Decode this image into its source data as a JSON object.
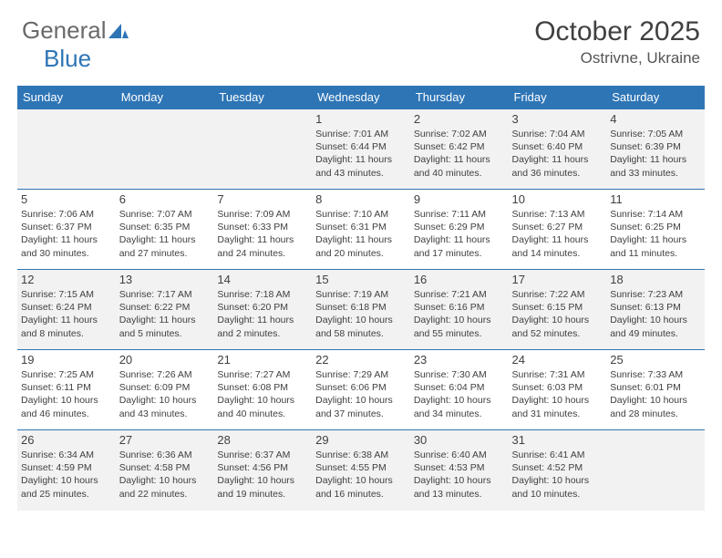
{
  "logo": {
    "text1": "General",
    "text2": "Blue"
  },
  "header": {
    "month_title": "October 2025",
    "location": "Ostrivne, Ukraine"
  },
  "colors": {
    "header_bg": "#2e75b6",
    "shaded_bg": "#f2f2f2",
    "text": "#404040",
    "logo_gray": "#6a6a6a",
    "page_bg": "#ffffff"
  },
  "day_headers": [
    "Sunday",
    "Monday",
    "Tuesday",
    "Wednesday",
    "Thursday",
    "Friday",
    "Saturday"
  ],
  "weeks": [
    {
      "cells": [
        {
          "day": "",
          "sunrise": "",
          "sunset": "",
          "daylight": ""
        },
        {
          "day": "",
          "sunrise": "",
          "sunset": "",
          "daylight": ""
        },
        {
          "day": "",
          "sunrise": "",
          "sunset": "",
          "daylight": ""
        },
        {
          "day": "1",
          "sunrise": "Sunrise: 7:01 AM",
          "sunset": "Sunset: 6:44 PM",
          "daylight": "Daylight: 11 hours and 43 minutes."
        },
        {
          "day": "2",
          "sunrise": "Sunrise: 7:02 AM",
          "sunset": "Sunset: 6:42 PM",
          "daylight": "Daylight: 11 hours and 40 minutes."
        },
        {
          "day": "3",
          "sunrise": "Sunrise: 7:04 AM",
          "sunset": "Sunset: 6:40 PM",
          "daylight": "Daylight: 11 hours and 36 minutes."
        },
        {
          "day": "4",
          "sunrise": "Sunrise: 7:05 AM",
          "sunset": "Sunset: 6:39 PM",
          "daylight": "Daylight: 11 hours and 33 minutes."
        }
      ]
    },
    {
      "cells": [
        {
          "day": "5",
          "sunrise": "Sunrise: 7:06 AM",
          "sunset": "Sunset: 6:37 PM",
          "daylight": "Daylight: 11 hours and 30 minutes."
        },
        {
          "day": "6",
          "sunrise": "Sunrise: 7:07 AM",
          "sunset": "Sunset: 6:35 PM",
          "daylight": "Daylight: 11 hours and 27 minutes."
        },
        {
          "day": "7",
          "sunrise": "Sunrise: 7:09 AM",
          "sunset": "Sunset: 6:33 PM",
          "daylight": "Daylight: 11 hours and 24 minutes."
        },
        {
          "day": "8",
          "sunrise": "Sunrise: 7:10 AM",
          "sunset": "Sunset: 6:31 PM",
          "daylight": "Daylight: 11 hours and 20 minutes."
        },
        {
          "day": "9",
          "sunrise": "Sunrise: 7:11 AM",
          "sunset": "Sunset: 6:29 PM",
          "daylight": "Daylight: 11 hours and 17 minutes."
        },
        {
          "day": "10",
          "sunrise": "Sunrise: 7:13 AM",
          "sunset": "Sunset: 6:27 PM",
          "daylight": "Daylight: 11 hours and 14 minutes."
        },
        {
          "day": "11",
          "sunrise": "Sunrise: 7:14 AM",
          "sunset": "Sunset: 6:25 PM",
          "daylight": "Daylight: 11 hours and 11 minutes."
        }
      ]
    },
    {
      "cells": [
        {
          "day": "12",
          "sunrise": "Sunrise: 7:15 AM",
          "sunset": "Sunset: 6:24 PM",
          "daylight": "Daylight: 11 hours and 8 minutes."
        },
        {
          "day": "13",
          "sunrise": "Sunrise: 7:17 AM",
          "sunset": "Sunset: 6:22 PM",
          "daylight": "Daylight: 11 hours and 5 minutes."
        },
        {
          "day": "14",
          "sunrise": "Sunrise: 7:18 AM",
          "sunset": "Sunset: 6:20 PM",
          "daylight": "Daylight: 11 hours and 2 minutes."
        },
        {
          "day": "15",
          "sunrise": "Sunrise: 7:19 AM",
          "sunset": "Sunset: 6:18 PM",
          "daylight": "Daylight: 10 hours and 58 minutes."
        },
        {
          "day": "16",
          "sunrise": "Sunrise: 7:21 AM",
          "sunset": "Sunset: 6:16 PM",
          "daylight": "Daylight: 10 hours and 55 minutes."
        },
        {
          "day": "17",
          "sunrise": "Sunrise: 7:22 AM",
          "sunset": "Sunset: 6:15 PM",
          "daylight": "Daylight: 10 hours and 52 minutes."
        },
        {
          "day": "18",
          "sunrise": "Sunrise: 7:23 AM",
          "sunset": "Sunset: 6:13 PM",
          "daylight": "Daylight: 10 hours and 49 minutes."
        }
      ]
    },
    {
      "cells": [
        {
          "day": "19",
          "sunrise": "Sunrise: 7:25 AM",
          "sunset": "Sunset: 6:11 PM",
          "daylight": "Daylight: 10 hours and 46 minutes."
        },
        {
          "day": "20",
          "sunrise": "Sunrise: 7:26 AM",
          "sunset": "Sunset: 6:09 PM",
          "daylight": "Daylight: 10 hours and 43 minutes."
        },
        {
          "day": "21",
          "sunrise": "Sunrise: 7:27 AM",
          "sunset": "Sunset: 6:08 PM",
          "daylight": "Daylight: 10 hours and 40 minutes."
        },
        {
          "day": "22",
          "sunrise": "Sunrise: 7:29 AM",
          "sunset": "Sunset: 6:06 PM",
          "daylight": "Daylight: 10 hours and 37 minutes."
        },
        {
          "day": "23",
          "sunrise": "Sunrise: 7:30 AM",
          "sunset": "Sunset: 6:04 PM",
          "daylight": "Daylight: 10 hours and 34 minutes."
        },
        {
          "day": "24",
          "sunrise": "Sunrise: 7:31 AM",
          "sunset": "Sunset: 6:03 PM",
          "daylight": "Daylight: 10 hours and 31 minutes."
        },
        {
          "day": "25",
          "sunrise": "Sunrise: 7:33 AM",
          "sunset": "Sunset: 6:01 PM",
          "daylight": "Daylight: 10 hours and 28 minutes."
        }
      ]
    },
    {
      "cells": [
        {
          "day": "26",
          "sunrise": "Sunrise: 6:34 AM",
          "sunset": "Sunset: 4:59 PM",
          "daylight": "Daylight: 10 hours and 25 minutes."
        },
        {
          "day": "27",
          "sunrise": "Sunrise: 6:36 AM",
          "sunset": "Sunset: 4:58 PM",
          "daylight": "Daylight: 10 hours and 22 minutes."
        },
        {
          "day": "28",
          "sunrise": "Sunrise: 6:37 AM",
          "sunset": "Sunset: 4:56 PM",
          "daylight": "Daylight: 10 hours and 19 minutes."
        },
        {
          "day": "29",
          "sunrise": "Sunrise: 6:38 AM",
          "sunset": "Sunset: 4:55 PM",
          "daylight": "Daylight: 10 hours and 16 minutes."
        },
        {
          "day": "30",
          "sunrise": "Sunrise: 6:40 AM",
          "sunset": "Sunset: 4:53 PM",
          "daylight": "Daylight: 10 hours and 13 minutes."
        },
        {
          "day": "31",
          "sunrise": "Sunrise: 6:41 AM",
          "sunset": "Sunset: 4:52 PM",
          "daylight": "Daylight: 10 hours and 10 minutes."
        },
        {
          "day": "",
          "sunrise": "",
          "sunset": "",
          "daylight": ""
        }
      ]
    }
  ]
}
